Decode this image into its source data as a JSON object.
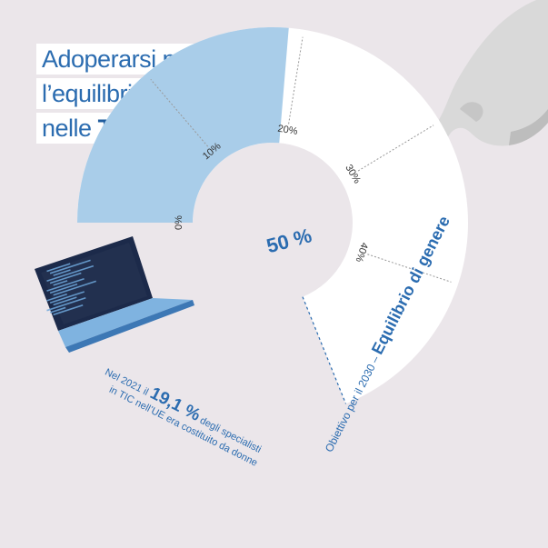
{
  "title": {
    "line1": "Adoperarsi per conseguire",
    "line2": "l’equilibrio di genere",
    "line3_prefix": "nelle",
    "line3_bold": "TIC"
  },
  "colors": {
    "accent": "#2b6cb0",
    "filled": "#a9cde9",
    "background": "#ebe6ea",
    "ring": "#ffffff"
  },
  "icons": [
    "laptop-icon",
    "pointing-hand-icon"
  ],
  "chart_data": {
    "type": "gauge",
    "max_label": "50 %",
    "ticks": [
      "0%",
      "10%",
      "20%",
      "30%",
      "40%"
    ],
    "value": 19.1,
    "target": 50,
    "value_text": {
      "line1_prefix": "Nel 2021 il",
      "value_label": "19,1 %",
      "line1_suffix": "degli specialisti",
      "line2": "in TIC nell’UE era costituito da donne"
    },
    "target_text": {
      "prefix": "Obiettivo per il 2030 –",
      "bold": "Equilibrio di genere"
    }
  }
}
